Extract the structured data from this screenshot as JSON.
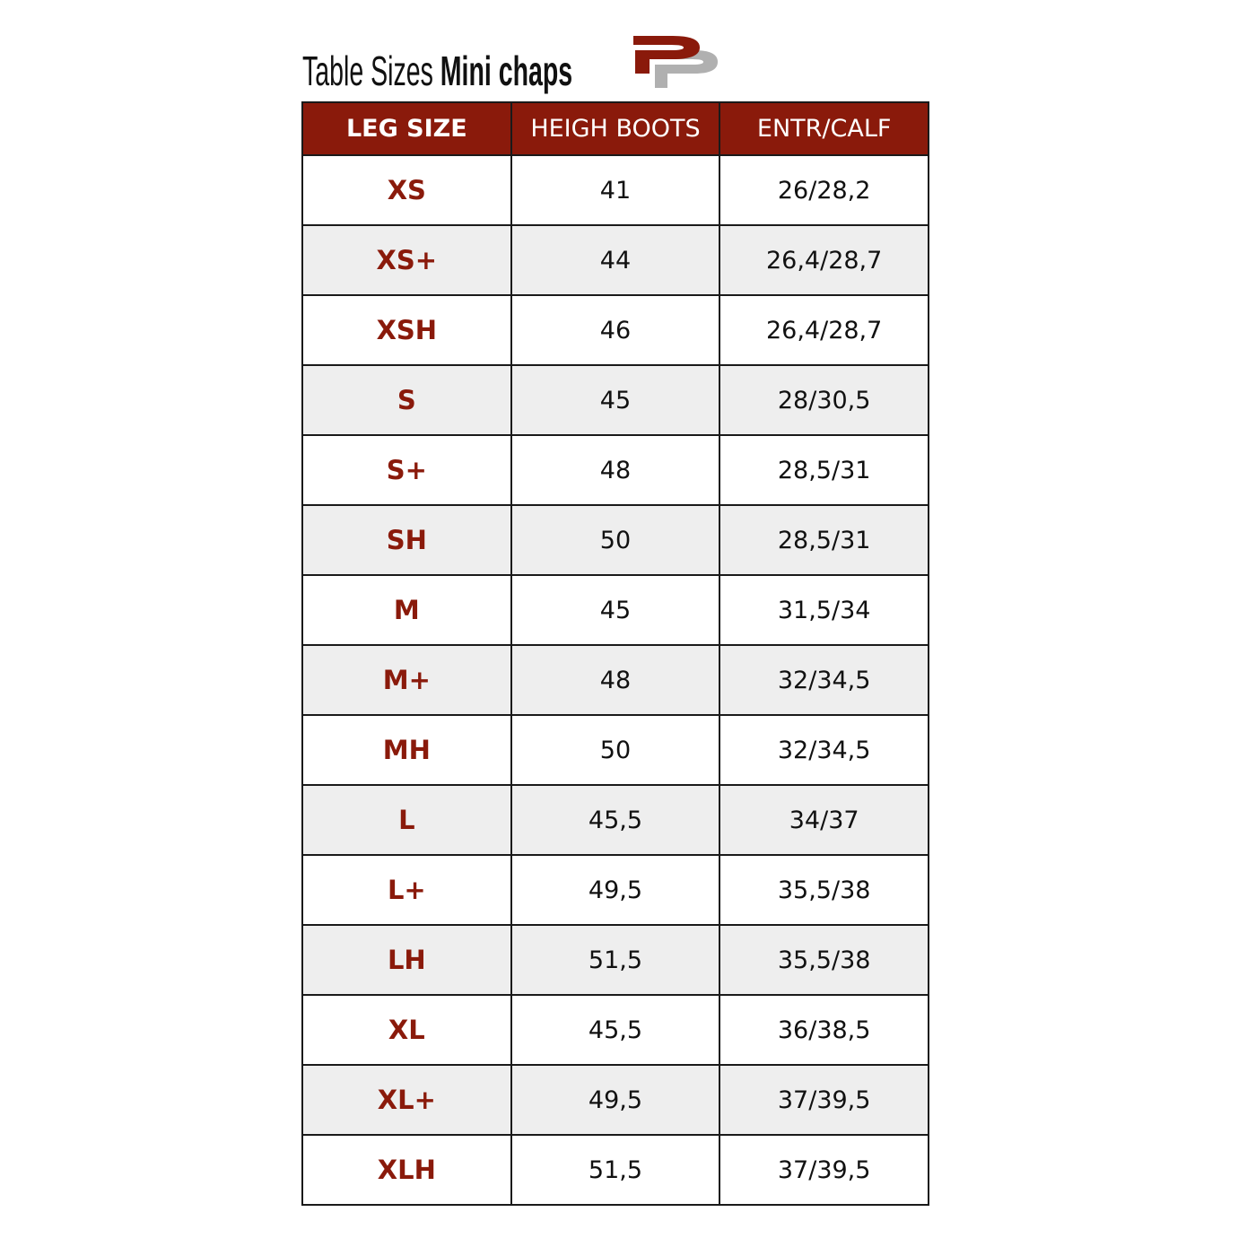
{
  "title": {
    "regular": "Table Sizes",
    "bold": "Mini chaps"
  },
  "logo": {
    "name": "PP logo",
    "colors": {
      "red": "#8a1a0b",
      "grey": "#b0b0b0"
    }
  },
  "colors": {
    "header_bg": "#8a1a0b",
    "size_text": "#8a1a0b",
    "alt_row": "#eeeeee"
  },
  "table": {
    "headers": [
      "LEG SIZE",
      "HEIGH BOOTS",
      "ENTR/CALF"
    ],
    "rows": [
      [
        "XS",
        "41",
        "26/28,2"
      ],
      [
        "XS+",
        "44",
        "26,4/28,7"
      ],
      [
        "XSH",
        "46",
        "26,4/28,7"
      ],
      [
        "S",
        "45",
        "28/30,5"
      ],
      [
        "S+",
        "48",
        "28,5/31"
      ],
      [
        "SH",
        "50",
        "28,5/31"
      ],
      [
        "M",
        "45",
        "31,5/34"
      ],
      [
        "M+",
        "48",
        "32/34,5"
      ],
      [
        "MH",
        "50",
        "32/34,5"
      ],
      [
        "L",
        "45,5",
        "34/37"
      ],
      [
        "L+",
        "49,5",
        "35,5/38"
      ],
      [
        "LH",
        "51,5",
        "35,5/38"
      ],
      [
        "XL",
        "45,5",
        "36/38,5"
      ],
      [
        "XL+",
        "49,5",
        "37/39,5"
      ],
      [
        "XLH",
        "51,5",
        "37/39,5"
      ]
    ]
  }
}
